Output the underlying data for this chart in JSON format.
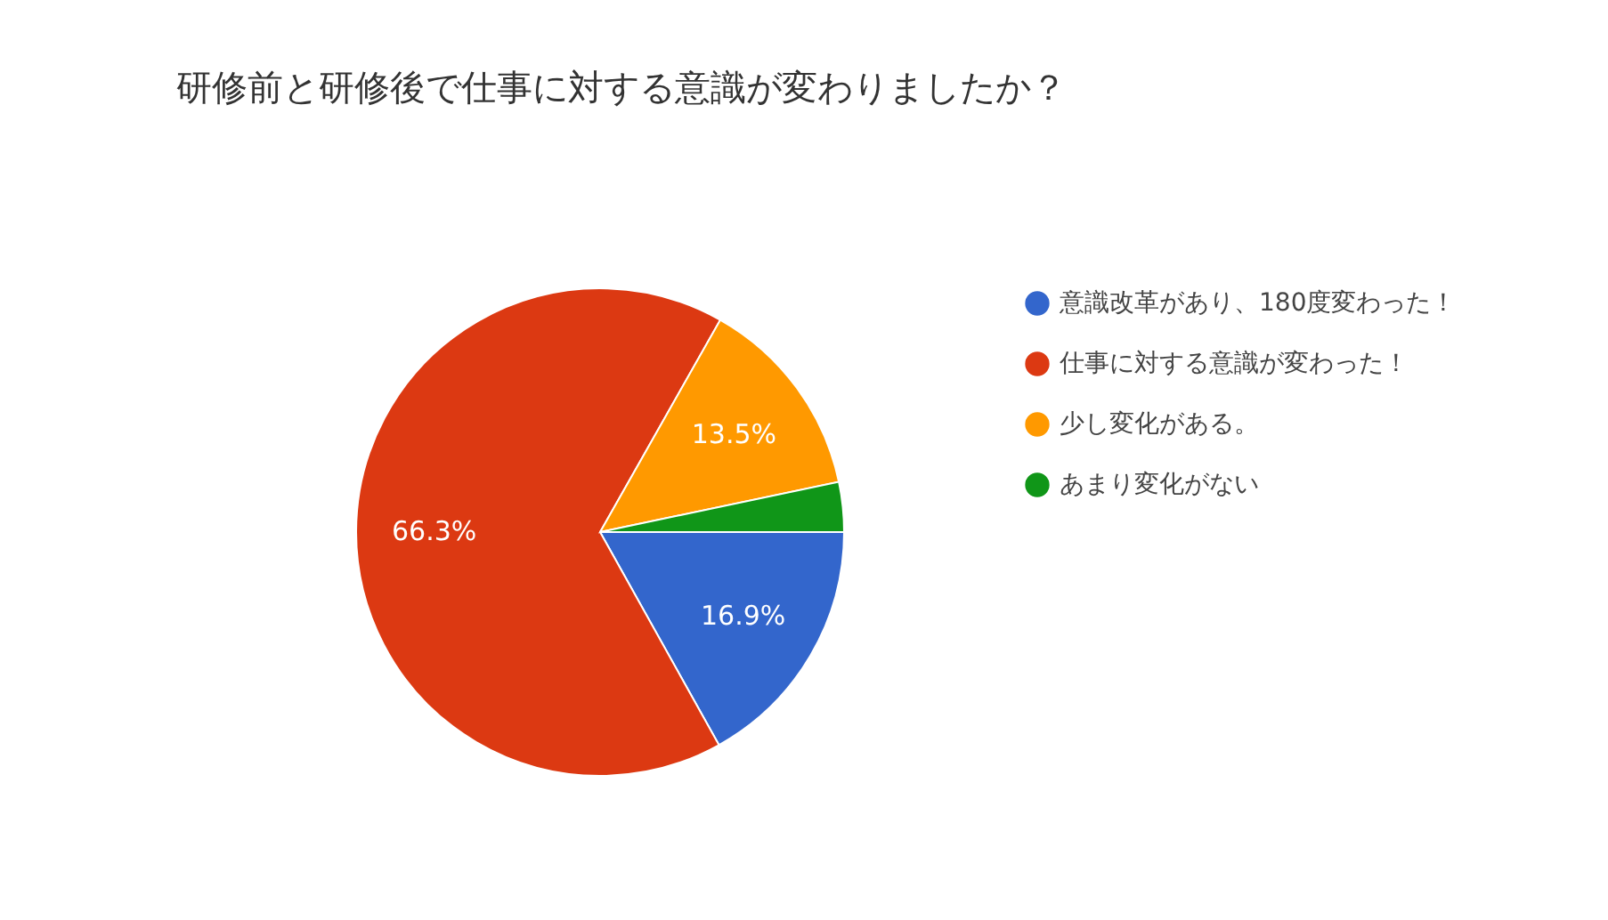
{
  "chart_data": {
    "type": "pie",
    "title": "研修前と研修後で仕事に対する意識が変わりましたか？",
    "categories": [
      "意識改革があり、180度変わった！",
      "仕事に対する意識が変わった！",
      "少し変化がある。",
      "あまり変化がない"
    ],
    "values": [
      16.9,
      66.3,
      13.5,
      3.3
    ],
    "colors": [
      "#3366cc",
      "#dc3912",
      "#ff9900",
      "#109618"
    ],
    "value_labels": [
      "16.9%",
      "66.3%",
      "13.5%",
      null
    ],
    "legend": "right"
  }
}
